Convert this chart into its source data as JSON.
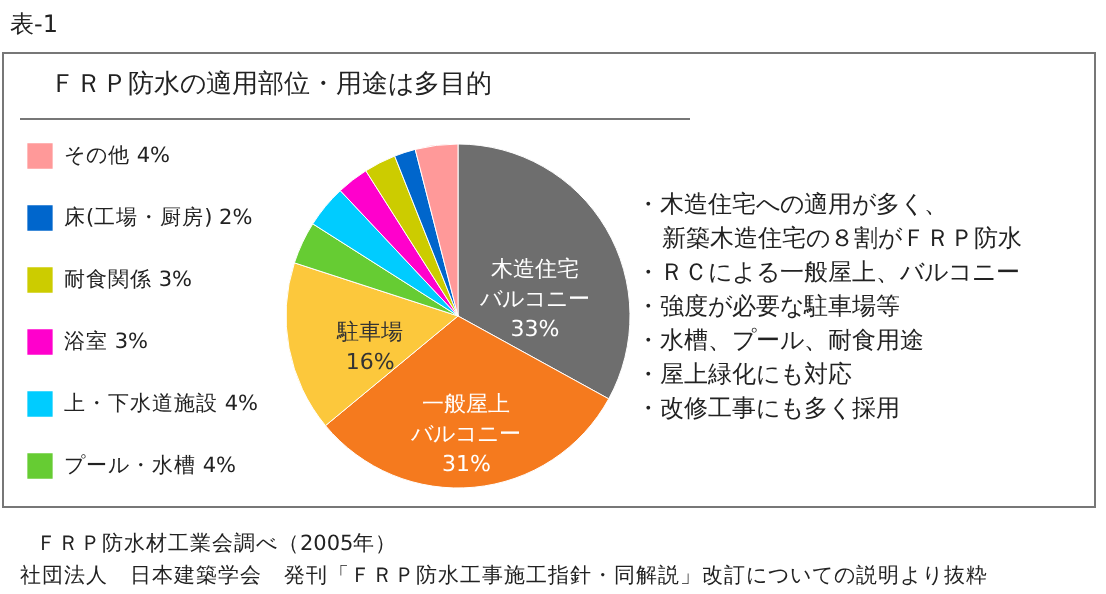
{
  "chart_data": {
    "type": "pie",
    "title": "ＦＲＰ防水の適用部位・用途は多目的",
    "categories": [
      "木造住宅バルコニー",
      "一般屋上バルコニー",
      "駐車場",
      "プール・水槽",
      "上・下水道施設",
      "浴室",
      "耐食関係",
      "床(工場・厨房)",
      "その他"
    ],
    "values": [
      33,
      31,
      16,
      4,
      4,
      3,
      3,
      2,
      4
    ],
    "value_labels": [
      "33%",
      "31%",
      "16%",
      "4%",
      "4%",
      "3%",
      "3%",
      "2%",
      "4%"
    ],
    "colors": [
      "#6e6e6e",
      "#f57a1e",
      "#fcc83c",
      "#66cc33",
      "#00ccff",
      "#ff00cc",
      "#cccc00",
      "#0066cc",
      "#ff9999"
    ],
    "legend": "left",
    "annotations": [
      "表-1",
      "・木造住宅への適用が多く、新築木造住宅の８割がＦＲＰ防水",
      "・ＲＣによる一般屋上、バルコニー",
      "・強度が必要な駐車場等",
      "・水槽、プール、耐食用途",
      "・屋上緑化にも対応",
      "・改修工事にも多く採用",
      "ＦＲＰ防水材工業会調べ（2005年）",
      "社団法人　日本建築学会　発刊「ＦＲＰ防水工事施工指針・同解説」改訂についての説明より抜粋"
    ]
  }
}
